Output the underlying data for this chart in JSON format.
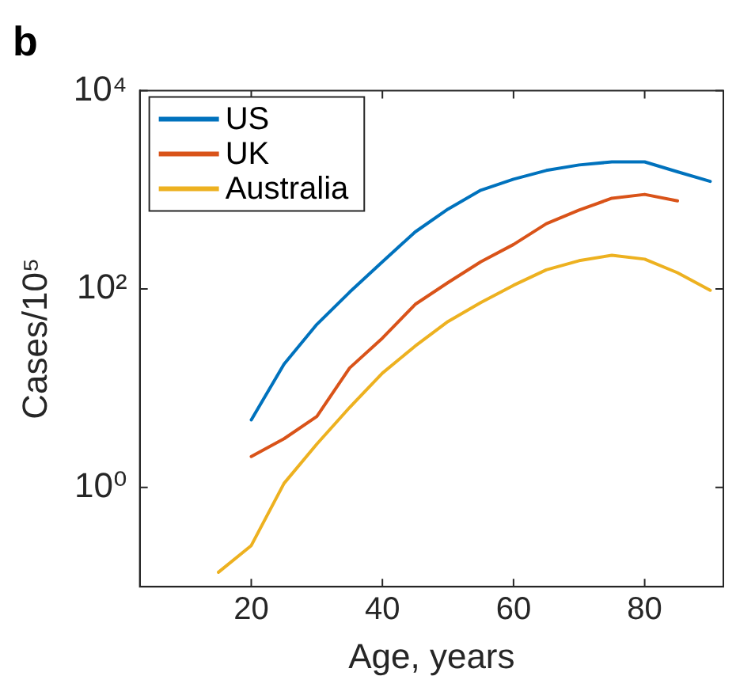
{
  "chart_data": {
    "type": "line",
    "title": "b",
    "xlabel": "Age, years",
    "ylabel": "Cases/10⁵",
    "log": "y",
    "xlim": [
      3,
      92
    ],
    "xticks": [
      20,
      40,
      60,
      80
    ],
    "ylim": [
      0.1,
      10000
    ],
    "yticks": [
      {
        "value": 1,
        "label": "10⁰"
      },
      {
        "value": 100,
        "label": "10²"
      },
      {
        "value": 10000,
        "label": "10⁴"
      }
    ],
    "legend": "top left",
    "line_style": "solid",
    "marker": "none",
    "series": [
      {
        "name": "US",
        "color": "#0072bd",
        "x": [
          20,
          25,
          30,
          35,
          40,
          45,
          50,
          55,
          60,
          65,
          70,
          75,
          80,
          85,
          90
        ],
        "values": [
          4.8,
          17.5,
          44,
          93,
          188,
          376,
          638,
          990,
          1280,
          1566,
          1780,
          1910,
          1910,
          1520,
          1215
        ]
      },
      {
        "name": "UK",
        "color": "#d95319",
        "x": [
          20,
          25,
          30,
          35,
          40,
          45,
          50,
          55,
          60,
          65,
          70,
          75,
          80,
          85
        ],
        "values": [
          2.05,
          3.1,
          5.2,
          16,
          32,
          70,
          116,
          188,
          281,
          455,
          624,
          822,
          898,
          773
        ]
      },
      {
        "name": "Australia",
        "color": "#edb120",
        "x": [
          15,
          20,
          25,
          30,
          35,
          40,
          45,
          50,
          55,
          60,
          65,
          70,
          75,
          80,
          85,
          90
        ],
        "values": [
          0.14,
          0.26,
          1.1,
          2.74,
          6.4,
          14.2,
          26.6,
          47,
          73,
          109,
          156,
          193,
          219,
          200,
          146,
          97
        ]
      }
    ]
  }
}
